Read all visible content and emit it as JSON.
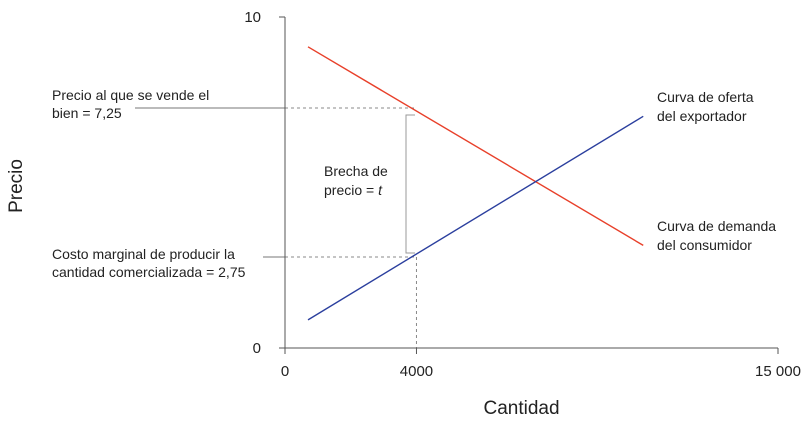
{
  "chart_data": {
    "type": "line",
    "xlabel": "Cantidad",
    "ylabel": "Precio",
    "xlim": [
      0,
      15000
    ],
    "ylim": [
      0,
      10
    ],
    "x_ticks": [
      {
        "value": 0,
        "label": "0"
      },
      {
        "value": 4000,
        "label": "4000"
      },
      {
        "value": 15000,
        "label": "15 000"
      }
    ],
    "y_ticks": [
      {
        "value": 0,
        "label": "0"
      },
      {
        "value": 10,
        "label": "10"
      }
    ],
    "series": [
      {
        "key": "demand",
        "label_lines": [
          "Curva de demanda",
          "del consumidor"
        ],
        "color": "#e8402a",
        "points": [
          [
            700,
            9.1
          ],
          [
            10900,
            3.1
          ]
        ]
      },
      {
        "key": "supply",
        "label_lines": [
          "Curva de oferta",
          "del exportador"
        ],
        "color": "#2b3f9e",
        "points": [
          [
            700,
            0.85
          ],
          [
            10900,
            7.0
          ]
        ]
      }
    ],
    "annotations": {
      "high_price": {
        "value": 7.25,
        "lines": [
          "Precio al que se vende el",
          "bien = 7,25"
        ]
      },
      "low_price": {
        "value": 2.75,
        "lines": [
          "Costo marginal de producir la",
          "cantidad comercializada = 2,75"
        ]
      },
      "gap": {
        "lines": [
          "Brecha de",
          "precio = t"
        ],
        "x": 4000
      }
    }
  }
}
